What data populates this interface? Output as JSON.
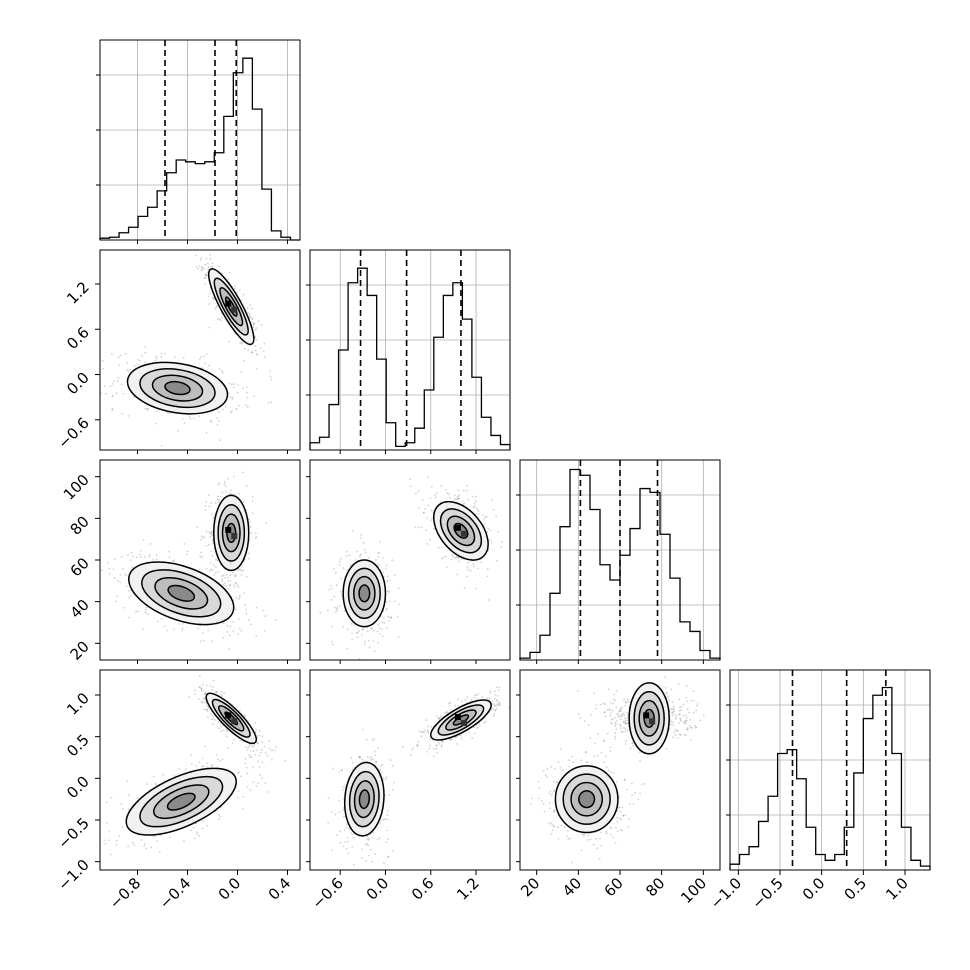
{
  "chart_data": {
    "type": "corner",
    "title": "",
    "grid": true,
    "legend": "none",
    "colors": {
      "hist_line": "#000000",
      "quantile_line": "#000000",
      "scatter": "#7f7f7f",
      "grid": "#b0b0b0",
      "contour": "#000000"
    },
    "parameters": [
      {
        "index": 0,
        "lim": [
          -1.1,
          0.5
        ],
        "ticks": [
          "−0.8",
          "−0.4",
          "0.0",
          "0.4"
        ],
        "tick_values": [
          -0.8,
          -0.4,
          0.0,
          0.4
        ],
        "quantiles": [
          -0.58,
          -0.18,
          -0.01
        ]
      },
      {
        "index": 1,
        "lim": [
          -1.0,
          1.65
        ],
        "ticks": [
          "−0.6",
          "0.0",
          "0.6",
          "1.2"
        ],
        "tick_values": [
          -0.6,
          0.0,
          0.6,
          1.2
        ],
        "quantiles": [
          -0.33,
          0.28,
          1.0
        ]
      },
      {
        "index": 2,
        "lim": [
          12,
          108
        ],
        "ticks": [
          "20",
          "40",
          "60",
          "80",
          "100"
        ],
        "tick_values": [
          20,
          40,
          60,
          80,
          100
        ],
        "quantiles": [
          41,
          60,
          78
        ]
      },
      {
        "index": 3,
        "lim": [
          -1.1,
          1.3
        ],
        "ticks": [
          "−1.0",
          "−0.5",
          "0.0",
          "0.5",
          "1.0"
        ],
        "tick_values": [
          -1.0,
          -0.5,
          0.0,
          0.5,
          1.0
        ],
        "quantiles": [
          -0.35,
          0.3,
          0.77
        ]
      }
    ],
    "histograms": [
      {
        "param": 0,
        "counts": [
          0.01,
          0.015,
          0.04,
          0.07,
          0.13,
          0.18,
          0.27,
          0.37,
          0.44,
          0.43,
          0.42,
          0.43,
          0.48,
          0.68,
          0.92,
          1.0,
          0.72,
          0.28,
          0.05,
          0.015,
          0.0
        ],
        "ymax": 1.1
      },
      {
        "param": 1,
        "counts": [
          0.04,
          0.07,
          0.25,
          0.55,
          0.92,
          1.0,
          0.85,
          0.5,
          0.15,
          0.02,
          0.04,
          0.12,
          0.33,
          0.62,
          0.85,
          0.92,
          0.72,
          0.4,
          0.18,
          0.08,
          0.03
        ],
        "ymax": 1.1
      },
      {
        "param": 2,
        "counts": [
          0.01,
          0.04,
          0.13,
          0.35,
          0.7,
          1.0,
          0.97,
          0.79,
          0.5,
          0.42,
          0.55,
          0.69,
          0.9,
          0.88,
          0.66,
          0.43,
          0.2,
          0.15,
          0.05,
          0.01
        ],
        "ymax": 1.05
      },
      {
        "param": 3,
        "counts": [
          0.03,
          0.08,
          0.12,
          0.25,
          0.38,
          0.6,
          0.62,
          0.47,
          0.22,
          0.08,
          0.05,
          0.08,
          0.22,
          0.5,
          0.78,
          0.9,
          0.94,
          0.6,
          0.22,
          0.05,
          0.02
        ],
        "ymax": 1.03
      }
    ],
    "pairs": [
      {
        "x": 0,
        "y": 1,
        "clusters": [
          {
            "cx": -0.05,
            "cy": 0.9,
            "sx": 0.09,
            "sy": 0.25,
            "rho": -0.85
          },
          {
            "cx": -0.48,
            "cy": -0.18,
            "sx": 0.2,
            "sy": 0.17,
            "rho": -0.25
          }
        ]
      },
      {
        "x": 0,
        "y": 2,
        "clusters": [
          {
            "cx": -0.05,
            "cy": 73,
            "sx": 0.07,
            "sy": 9,
            "rho": 0.0
          },
          {
            "cx": -0.45,
            "cy": 44,
            "sx": 0.21,
            "sy": 7.5,
            "rho": -0.45
          }
        ]
      },
      {
        "x": 0,
        "y": 3,
        "clusters": [
          {
            "cx": -0.05,
            "cy": 0.72,
            "sx": 0.1,
            "sy": 0.15,
            "rho": -0.85
          },
          {
            "cx": -0.45,
            "cy": -0.28,
            "sx": 0.22,
            "sy": 0.2,
            "rho": 0.6
          }
        ]
      },
      {
        "x": 1,
        "y": 2,
        "clusters": [
          {
            "cx": 1.0,
            "cy": 74,
            "sx": 0.18,
            "sy": 7,
            "rho": -0.45
          },
          {
            "cx": -0.28,
            "cy": 44,
            "sx": 0.14,
            "sy": 8,
            "rho": 0.0
          }
        ]
      },
      {
        "x": 1,
        "y": 3,
        "clusters": [
          {
            "cx": 1.0,
            "cy": 0.7,
            "sx": 0.2,
            "sy": 0.12,
            "rho": 0.75
          },
          {
            "cx": -0.28,
            "cy": -0.25,
            "sx": 0.13,
            "sy": 0.22,
            "rho": 0.1
          }
        ]
      },
      {
        "x": 2,
        "y": 3,
        "clusters": [
          {
            "cx": 74,
            "cy": 0.72,
            "sx": 8.5,
            "sy": 0.12,
            "rho": 0.0
          },
          {
            "cx": 44,
            "cy": -0.25,
            "sx": 7.5,
            "sy": 0.2,
            "rho": 0.0
          }
        ]
      }
    ]
  }
}
